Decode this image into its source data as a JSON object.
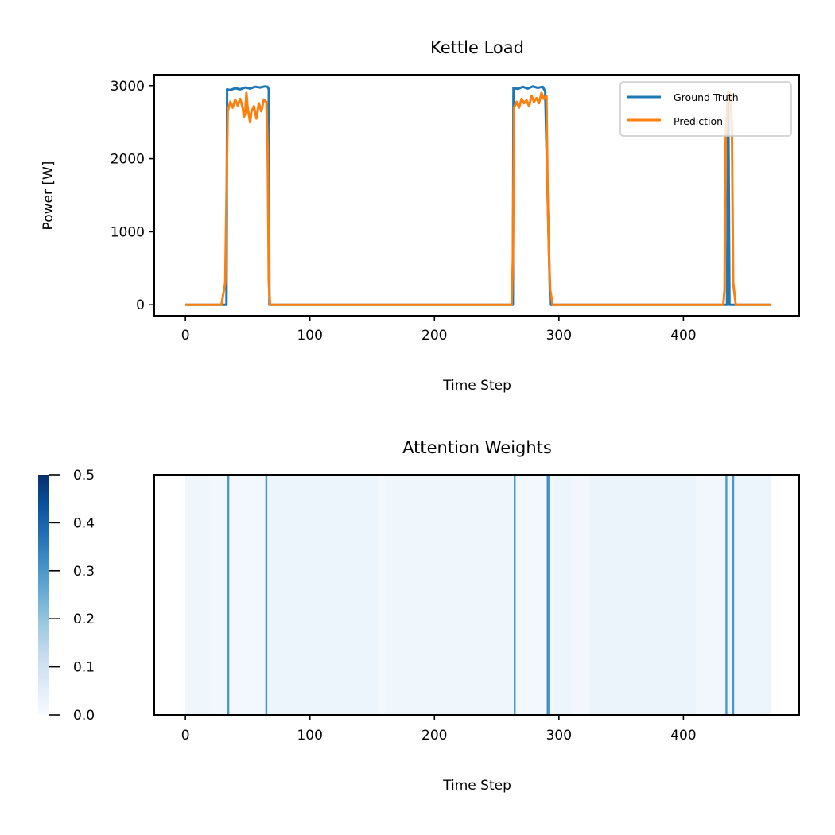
{
  "chart_data": [
    {
      "type": "line",
      "title": "Kettle Load",
      "xlabel": "Time Step",
      "ylabel": "Power [W]",
      "xlim": [
        -25,
        493
      ],
      "ylim": [
        -150,
        3150
      ],
      "xticks": [
        0,
        100,
        200,
        300,
        400
      ],
      "yticks": [
        0,
        1000,
        2000,
        3000
      ],
      "legend_location": "top-right",
      "series": [
        {
          "name": "Ground Truth",
          "color": "#1f77b4",
          "points": [
            [
              0,
              0
            ],
            [
              33,
              0
            ],
            [
              33.5,
              2950
            ],
            [
              36,
              2940
            ],
            [
              40,
              2965
            ],
            [
              44,
              2950
            ],
            [
              48,
              2975
            ],
            [
              52,
              2960
            ],
            [
              56,
              2985
            ],
            [
              60,
              2975
            ],
            [
              64,
              2990
            ],
            [
              66,
              2985
            ],
            [
              67,
              2950
            ],
            [
              67.5,
              0
            ],
            [
              263,
              0
            ],
            [
              263.5,
              2970
            ],
            [
              267,
              2955
            ],
            [
              271,
              2985
            ],
            [
              275,
              2960
            ],
            [
              279,
              2990
            ],
            [
              283,
              2970
            ],
            [
              287,
              2985
            ],
            [
              289,
              2920
            ],
            [
              293,
              0
            ],
            [
              435,
              0
            ],
            [
              436,
              2900
            ],
            [
              437,
              0
            ],
            [
              470,
              0
            ]
          ]
        },
        {
          "name": "Prediction",
          "color": "#ff7f0e",
          "points": [
            [
              0,
              0
            ],
            [
              29,
              0
            ],
            [
              32,
              300
            ],
            [
              34,
              2650
            ],
            [
              36,
              2780
            ],
            [
              38,
              2700
            ],
            [
              40,
              2810
            ],
            [
              42,
              2730
            ],
            [
              44,
              2820
            ],
            [
              46,
              2700
            ],
            [
              47,
              2570
            ],
            [
              48,
              2620
            ],
            [
              49,
              2900
            ],
            [
              50,
              2700
            ],
            [
              52,
              2500
            ],
            [
              53,
              2640
            ],
            [
              55,
              2720
            ],
            [
              57,
              2550
            ],
            [
              59,
              2760
            ],
            [
              61,
              2650
            ],
            [
              63,
              2810
            ],
            [
              65,
              2780
            ],
            [
              66,
              2200
            ],
            [
              67,
              300
            ],
            [
              68,
              0
            ],
            [
              262,
              0
            ],
            [
              263,
              600
            ],
            [
              264,
              2700
            ],
            [
              266,
              2780
            ],
            [
              268,
              2700
            ],
            [
              270,
              2820
            ],
            [
              272,
              2760
            ],
            [
              274,
              2800
            ],
            [
              276,
              2720
            ],
            [
              278,
              2860
            ],
            [
              280,
              2780
            ],
            [
              282,
              2830
            ],
            [
              284,
              2760
            ],
            [
              286,
              2900
            ],
            [
              288,
              2820
            ],
            [
              290,
              2860
            ],
            [
              291,
              1500
            ],
            [
              292,
              700
            ],
            [
              293,
              200
            ],
            [
              295,
              0
            ],
            [
              432,
              0
            ],
            [
              433,
              200
            ],
            [
              434,
              2300
            ],
            [
              436,
              2920
            ],
            [
              438,
              2880
            ],
            [
              439,
              2300
            ],
            [
              440,
              300
            ],
            [
              442,
              0
            ],
            [
              470,
              0
            ]
          ]
        }
      ]
    },
    {
      "type": "heatmap",
      "title": "Attention Weights",
      "xlabel": "Time Step",
      "xlim": [
        -25,
        493
      ],
      "xticks": [
        0,
        100,
        200,
        300,
        400
      ],
      "colorbar": {
        "min": 0.0,
        "max": 0.5,
        "ticks": [
          "0.0",
          "0.1",
          "0.2",
          "0.3",
          "0.4",
          "0.5"
        ],
        "colormap": "Blues"
      },
      "base_segments": [
        {
          "start": 0,
          "end": 20,
          "value": 0.02
        },
        {
          "start": 20,
          "end": 34,
          "value": 0.015
        },
        {
          "start": 34,
          "end": 64,
          "value": 0.01
        },
        {
          "start": 64,
          "end": 155,
          "value": 0.025
        },
        {
          "start": 155,
          "end": 160,
          "value": 0.01
        },
        {
          "start": 160,
          "end": 264,
          "value": 0.02
        },
        {
          "start": 264,
          "end": 291,
          "value": 0.01
        },
        {
          "start": 291,
          "end": 296,
          "value": 0.02
        },
        {
          "start": 296,
          "end": 310,
          "value": 0.025
        },
        {
          "start": 310,
          "end": 325,
          "value": 0.015
        },
        {
          "start": 325,
          "end": 410,
          "value": 0.03
        },
        {
          "start": 410,
          "end": 434,
          "value": 0.015
        },
        {
          "start": 434,
          "end": 470,
          "value": 0.025
        }
      ],
      "spikes": [
        {
          "x": 34.5,
          "value": 0.3
        },
        {
          "x": 65,
          "value": 0.3
        },
        {
          "x": 264.5,
          "value": 0.3
        },
        {
          "x": 291,
          "value": 0.33
        },
        {
          "x": 292,
          "value": 0.3
        },
        {
          "x": 434.5,
          "value": 0.3
        },
        {
          "x": 440,
          "value": 0.3
        }
      ]
    }
  ]
}
